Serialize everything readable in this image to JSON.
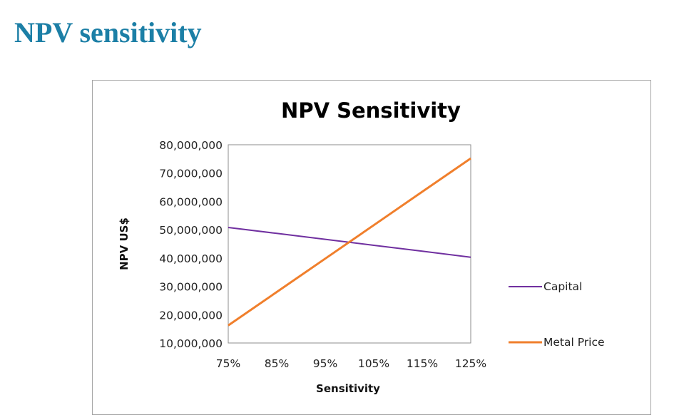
{
  "slide_title": "NPV sensitivity",
  "chart_data": {
    "type": "line",
    "title": "NPV Sensitivity",
    "xlabel": "Sensitivity",
    "ylabel": "NPV US$",
    "categories": [
      "75%",
      "85%",
      "95%",
      "105%",
      "115%",
      "125%"
    ],
    "x": [
      75,
      85,
      95,
      105,
      115,
      125
    ],
    "ylim": [
      10000000,
      80000000
    ],
    "yticks": [
      "10,000,000",
      "20,000,000",
      "30,000,000",
      "40,000,000",
      "50,000,000",
      "60,000,000",
      "70,000,000",
      "80,000,000"
    ],
    "grid": false,
    "legend_position": "right",
    "series": [
      {
        "name": "Capital",
        "color": "#7030a0",
        "values": [
          50800000,
          48700000,
          46600000,
          44500000,
          42400000,
          40300000
        ]
      },
      {
        "name": "Metal Price",
        "color": "#f07f2c",
        "values": [
          16200000,
          28000000,
          39800000,
          51600000,
          63400000,
          75200000
        ]
      }
    ]
  }
}
